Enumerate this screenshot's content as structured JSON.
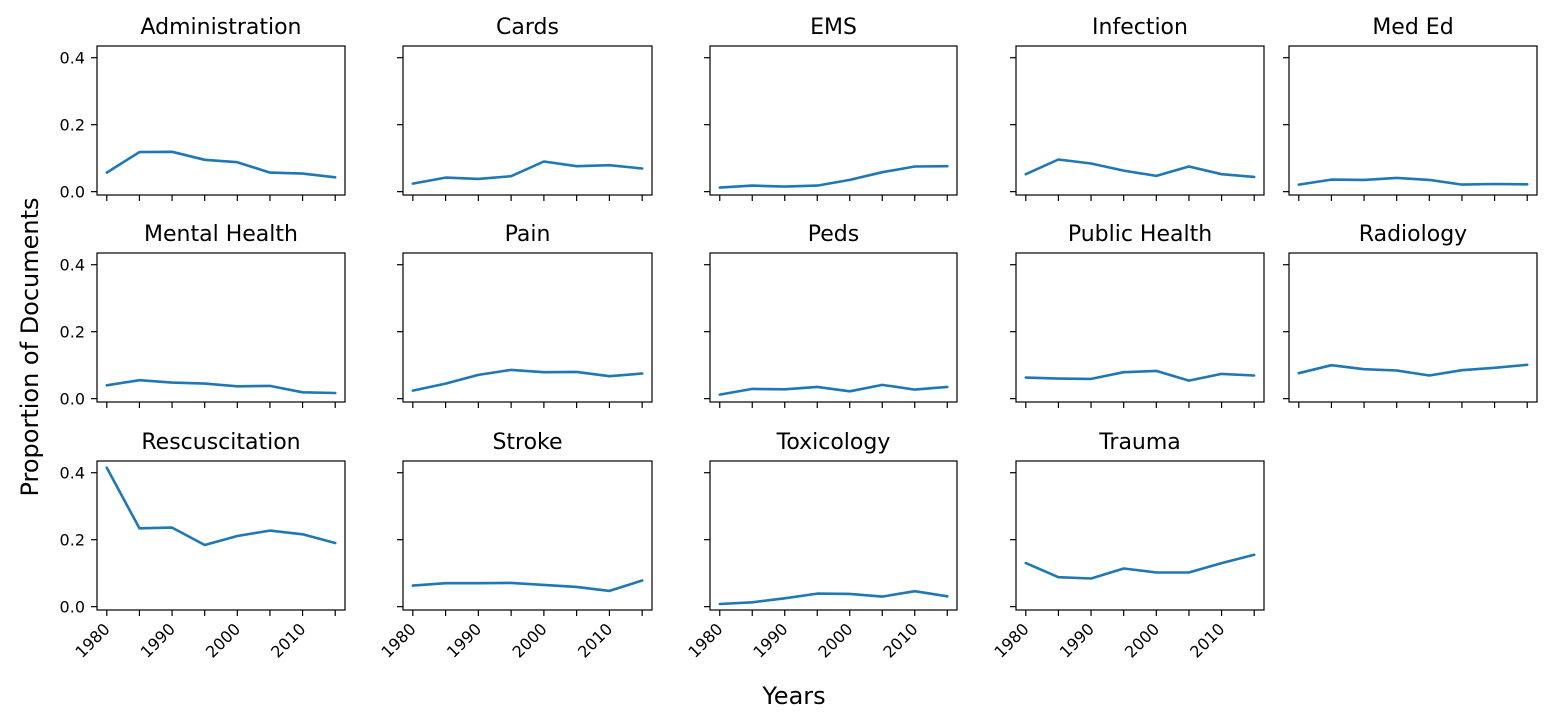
{
  "figure": {
    "xlabel": "Years",
    "ylabel": "Proportion of Documents",
    "line_color": "#1f77b4"
  },
  "chart_data": {
    "type": "line",
    "layout": "small-multiples grid, 3 rows x 5 columns, shared axes",
    "x": [
      1980,
      1985,
      1990,
      1995,
      2000,
      2005,
      2010,
      2015
    ],
    "xticks": [
      1980,
      1990,
      2000,
      2010
    ],
    "yticks": [
      0.0,
      0.2,
      0.4
    ],
    "ylim": [
      -0.01,
      0.435
    ],
    "xlim": [
      1978.5,
      2016.5
    ],
    "grid": false,
    "panels": [
      {
        "title": "Administration",
        "values": [
          0.057,
          0.118,
          0.119,
          0.095,
          0.088,
          0.057,
          0.054,
          0.043
        ]
      },
      {
        "title": "Cards",
        "values": [
          0.024,
          0.042,
          0.038,
          0.046,
          0.09,
          0.076,
          0.079,
          0.069
        ]
      },
      {
        "title": "EMS",
        "values": [
          0.012,
          0.018,
          0.015,
          0.018,
          0.035,
          0.058,
          0.075,
          0.076
        ]
      },
      {
        "title": "Infection",
        "values": [
          0.052,
          0.096,
          0.084,
          0.063,
          0.047,
          0.075,
          0.052,
          0.044
        ]
      },
      {
        "title": "Med Ed",
        "values": [
          0.021,
          0.036,
          0.035,
          0.041,
          0.035,
          0.021,
          0.023,
          0.022
        ]
      },
      {
        "title": "Mental Health",
        "values": [
          0.04,
          0.055,
          0.048,
          0.045,
          0.037,
          0.038,
          0.019,
          0.017
        ]
      },
      {
        "title": "Pain",
        "values": [
          0.024,
          0.045,
          0.071,
          0.086,
          0.079,
          0.08,
          0.067,
          0.075
        ]
      },
      {
        "title": "Peds",
        "values": [
          0.012,
          0.029,
          0.028,
          0.035,
          0.022,
          0.041,
          0.027,
          0.035
        ]
      },
      {
        "title": "Public Health",
        "values": [
          0.063,
          0.06,
          0.059,
          0.079,
          0.083,
          0.054,
          0.074,
          0.069
        ]
      },
      {
        "title": "Radiology",
        "values": [
          0.076,
          0.1,
          0.088,
          0.084,
          0.069,
          0.085,
          0.092,
          0.101
        ]
      },
      {
        "title": "Rescuscitation",
        "values": [
          0.415,
          0.234,
          0.236,
          0.184,
          0.211,
          0.227,
          0.216,
          0.19
        ]
      },
      {
        "title": "Stroke",
        "values": [
          0.063,
          0.07,
          0.07,
          0.071,
          0.065,
          0.059,
          0.047,
          0.078
        ]
      },
      {
        "title": "Toxicology",
        "values": [
          0.008,
          0.013,
          0.025,
          0.039,
          0.038,
          0.03,
          0.046,
          0.031
        ]
      },
      {
        "title": "Trauma",
        "values": [
          0.13,
          0.088,
          0.084,
          0.114,
          0.102,
          0.102,
          0.13,
          0.155
        ]
      }
    ]
  }
}
